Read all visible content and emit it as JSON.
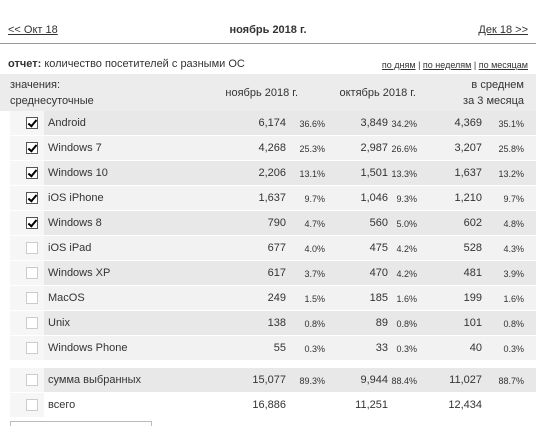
{
  "nav": {
    "prev": "<< Окт 18",
    "title": "ноябрь 2018 г.",
    "next": "Дек 18 >>"
  },
  "report": {
    "label": "отчет:",
    "text": "количество посетителей с разными ОС",
    "links": [
      "по дням",
      "по неделям",
      "по месяцам"
    ]
  },
  "table": {
    "header": {
      "values_label": "значения:",
      "values_sub": "среднесуточные",
      "columns": [
        "ноябрь 2018 г.",
        "октябрь 2018 г."
      ],
      "average": [
        "в среднем",
        "за 3 месяца"
      ]
    },
    "rows": [
      {
        "label": "Android",
        "checked": true,
        "counts": [
          "6,174",
          "3,849",
          "4,369"
        ],
        "shares": [
          "36.6%",
          "34.2%",
          "35.1%"
        ]
      },
      {
        "label": "Windows 7",
        "checked": true,
        "counts": [
          "4,268",
          "2,987",
          "3,207"
        ],
        "shares": [
          "25.3%",
          "26.6%",
          "25.8%"
        ]
      },
      {
        "label": "Windows 10",
        "checked": true,
        "counts": [
          "2,206",
          "1,501",
          "1,637"
        ],
        "shares": [
          "13.1%",
          "13.3%",
          "13.2%"
        ]
      },
      {
        "label": "iOS iPhone",
        "checked": true,
        "counts": [
          "1,637",
          "1,046",
          "1,210"
        ],
        "shares": [
          "9.7%",
          "9.3%",
          "9.7%"
        ]
      },
      {
        "label": "Windows 8",
        "checked": true,
        "counts": [
          "790",
          "560",
          "602"
        ],
        "shares": [
          "4.7%",
          "5.0%",
          "4.8%"
        ]
      },
      {
        "label": "iOS iPad",
        "checked": false,
        "counts": [
          "677",
          "475",
          "528"
        ],
        "shares": [
          "4.0%",
          "4.2%",
          "4.3%"
        ]
      },
      {
        "label": "Windows XP",
        "checked": false,
        "counts": [
          "617",
          "470",
          "481"
        ],
        "shares": [
          "3.7%",
          "4.2%",
          "3.9%"
        ]
      },
      {
        "label": "MacOS",
        "checked": false,
        "counts": [
          "249",
          "185",
          "199"
        ],
        "shares": [
          "1.5%",
          "1.6%",
          "1.6%"
        ]
      },
      {
        "label": "Unix",
        "checked": false,
        "counts": [
          "138",
          "89",
          "101"
        ],
        "shares": [
          "0.8%",
          "0.8%",
          "0.8%"
        ]
      },
      {
        "label": "Windows Phone",
        "checked": false,
        "counts": [
          "55",
          "33",
          "40"
        ],
        "shares": [
          "0.3%",
          "0.3%",
          "0.3%"
        ]
      }
    ],
    "totals": [
      {
        "label": "сумма выбранных",
        "checked": false,
        "counts": [
          "15,077",
          "9,944",
          "11,027"
        ],
        "shares": [
          "89.3%",
          "88.4%",
          "88.7%"
        ]
      },
      {
        "label": "всего",
        "checked": false,
        "counts": [
          "16,886",
          "11,251",
          "12,434"
        ]
      }
    ]
  }
}
